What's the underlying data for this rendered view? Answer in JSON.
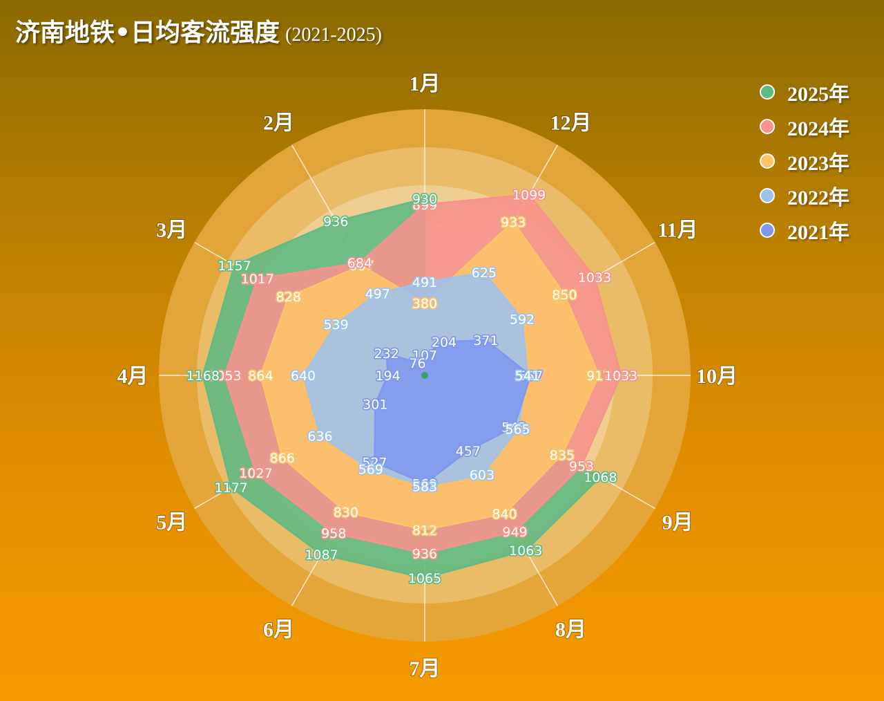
{
  "title": "济南地铁•日均客流强度",
  "subtitle": "(2021-2025)",
  "watermark": "",
  "chart_data": {
    "type": "radar",
    "categories": [
      "1月",
      "12月",
      "11月",
      "10月",
      "9月",
      "8月",
      "7月",
      "6月",
      "5月",
      "4月",
      "3月",
      "2月"
    ],
    "rmax": 1400,
    "series": [
      {
        "name": "2021年",
        "color": "#7f97ef",
        "values": [
          107,
          204,
          371,
          557,
          543,
          457,
          569,
          527,
          301,
          194,
          232,
          76
        ]
      },
      {
        "name": "2022年",
        "color": "#9ec3ea",
        "values": [
          491,
          625,
          592,
          541,
          565,
          603,
          583,
          569,
          636,
          640,
          539,
          497
        ]
      },
      {
        "name": "2023年",
        "color": "#fdc468",
        "values": [
          380,
          933,
          850,
          917,
          835,
          840,
          812,
          830,
          866,
          864,
          828,
          667
        ]
      },
      {
        "name": "2024年",
        "color": "#f7928c",
        "values": [
          899,
          1099,
          1033,
          1033,
          953,
          949,
          936,
          958,
          1027,
          1053,
          1017,
          684
        ]
      },
      {
        "name": "2025年",
        "color": "#5fba83",
        "values": [
          930,
          null,
          null,
          null,
          1068,
          1063,
          1065,
          1087,
          1177,
          1168,
          1157,
          936
        ]
      }
    ],
    "legend_order": [
      "2025年",
      "2024年",
      "2023年",
      "2022年",
      "2021年"
    ],
    "legend_position": "top-right"
  }
}
